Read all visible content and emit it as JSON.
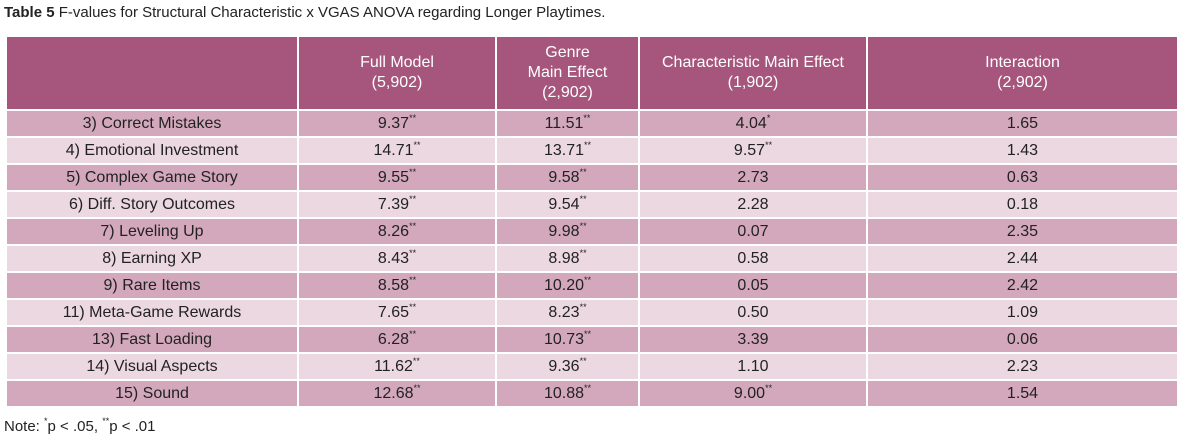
{
  "title": {
    "label": "Table 5",
    "text": "F-values for Structural Characteristic x VGAS ANOVA regarding Longer Playtimes."
  },
  "table": {
    "columns": [
      {
        "lines": []
      },
      {
        "lines": [
          "Full Model",
          "(5,902)"
        ]
      },
      {
        "lines": [
          "Genre",
          "Main Effect",
          "(2,902)"
        ]
      },
      {
        "lines": [
          "Characteristic Main Effect",
          "(1,902)"
        ]
      },
      {
        "lines": [
          "Interaction",
          "(2,902)"
        ]
      }
    ],
    "rows": [
      {
        "label": "3) Correct Mistakes",
        "cells": [
          {
            "value": "9.37",
            "sig": "**"
          },
          {
            "value": "11.51",
            "sig": "**"
          },
          {
            "value": "4.04",
            "sig": "*"
          },
          {
            "value": "1.65"
          }
        ]
      },
      {
        "label": "4) Emotional Investment",
        "cells": [
          {
            "value": "14.71",
            "sig": "**"
          },
          {
            "value": "13.71",
            "sig": "**"
          },
          {
            "value": "9.57",
            "sig": "**"
          },
          {
            "value": "1.43"
          }
        ]
      },
      {
        "label": "5) Complex Game Story",
        "cells": [
          {
            "value": "9.55",
            "sig": "**"
          },
          {
            "value": "9.58",
            "sig": "**"
          },
          {
            "value": "2.73"
          },
          {
            "value": "0.63"
          }
        ]
      },
      {
        "label": "6) Diff. Story Outcomes",
        "cells": [
          {
            "value": "7.39",
            "sig": "**"
          },
          {
            "value": "9.54",
            "sig": "**"
          },
          {
            "value": "2.28"
          },
          {
            "value": "0.18"
          }
        ]
      },
      {
        "label": "7) Leveling Up",
        "cells": [
          {
            "value": "8.26",
            "sig": "**"
          },
          {
            "value": "9.98",
            "sig": "**"
          },
          {
            "value": "0.07"
          },
          {
            "value": "2.35"
          }
        ]
      },
      {
        "label": "8) Earning XP",
        "cells": [
          {
            "value": "8.43",
            "sig": "**"
          },
          {
            "value": "8.98",
            "sig": "**"
          },
          {
            "value": "0.58"
          },
          {
            "value": "2.44"
          }
        ]
      },
      {
        "label": "9) Rare Items",
        "cells": [
          {
            "value": "8.58",
            "sig": "**"
          },
          {
            "value": "10.20",
            "sig": "**"
          },
          {
            "value": "0.05"
          },
          {
            "value": "2.42"
          }
        ]
      },
      {
        "label": "11) Meta-Game Rewards",
        "cells": [
          {
            "value": "7.65",
            "sig": "**"
          },
          {
            "value": "8.23",
            "sig": "**"
          },
          {
            "value": "0.50"
          },
          {
            "value": "1.09"
          }
        ]
      },
      {
        "label": "13) Fast Loading",
        "cells": [
          {
            "value": "6.28",
            "sig": "**"
          },
          {
            "value": "10.73",
            "sig": "**"
          },
          {
            "value": "3.39"
          },
          {
            "value": "0.06"
          }
        ]
      },
      {
        "label": "14) Visual Aspects",
        "cells": [
          {
            "value": "11.62",
            "sig": "**"
          },
          {
            "value": "9.36",
            "sig": "**"
          },
          {
            "value": "1.10"
          },
          {
            "value": "2.23"
          }
        ]
      },
      {
        "label": "15) Sound",
        "cells": [
          {
            "value": "12.68",
            "sig": "**"
          },
          {
            "value": "10.88",
            "sig": "**"
          },
          {
            "value": "9.00",
            "sig": "**"
          },
          {
            "value": "1.54"
          }
        ]
      }
    ]
  },
  "note": {
    "prefix": "Note:",
    "items": [
      {
        "sig": "*",
        "text": "p < .05,"
      },
      {
        "sig": "**",
        "text": "p < .01"
      }
    ]
  }
}
